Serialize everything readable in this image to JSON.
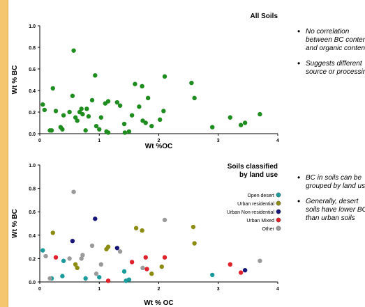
{
  "bullets_top": [
    "No correlation between BC content and organic content",
    "Suggests different source or processing"
  ],
  "bullets_bottom": [
    "BC in soils can be grouped by land use",
    "Generally, desert soils have lower BC than urban soils"
  ],
  "colors": {
    "green": "#1e8c1e",
    "open_desert": "#1a9a9a",
    "urban_residential": "#8c8c14",
    "urban_non_residential": "#16167a",
    "urban_mixed": "#e0202a",
    "other": "#9a9a9a",
    "side_strip": "#f5c66e"
  },
  "chart_data": [
    {
      "type": "scatter",
      "title": "All Soils",
      "xlabel": "Wt %OC",
      "ylabel": "Wt % BC",
      "xlim": [
        0,
        4
      ],
      "ylim": [
        0,
        1.0
      ],
      "xticks": [
        "0",
        "1",
        "2",
        "3",
        "4"
      ],
      "yticks": [
        "0.0",
        "0.2",
        "0.4",
        "0.6",
        "0.8",
        "1.0"
      ],
      "grid": false,
      "series": [
        {
          "color": "#1e8c1e",
          "points": [
            [
              0.05,
              0.27
            ],
            [
              0.08,
              0.22
            ],
            [
              0.17,
              0.03
            ],
            [
              0.2,
              0.03
            ],
            [
              0.22,
              0.42
            ],
            [
              0.27,
              0.21
            ],
            [
              0.35,
              0.06
            ],
            [
              0.38,
              0.04
            ],
            [
              0.4,
              0.17
            ],
            [
              0.5,
              0.2
            ],
            [
              0.55,
              0.35
            ],
            [
              0.57,
              0.77
            ],
            [
              0.6,
              0.15
            ],
            [
              0.63,
              0.12
            ],
            [
              0.67,
              0.2
            ],
            [
              0.7,
              0.23
            ],
            [
              0.72,
              0.18
            ],
            [
              0.77,
              0.03
            ],
            [
              0.79,
              0.23
            ],
            [
              0.82,
              0.16
            ],
            [
              0.88,
              0.31
            ],
            [
              0.93,
              0.54
            ],
            [
              0.95,
              0.07
            ],
            [
              1.0,
              0.04
            ],
            [
              1.03,
              0.15
            ],
            [
              1.1,
              0.28
            ],
            [
              1.12,
              0.02
            ],
            [
              1.15,
              0.01
            ],
            [
              1.15,
              0.3
            ],
            [
              1.3,
              0.29
            ],
            [
              1.35,
              0.26
            ],
            [
              1.42,
              0.09
            ],
            [
              1.43,
              0.01
            ],
            [
              1.5,
              0.02
            ],
            [
              1.55,
              0.17
            ],
            [
              1.6,
              0.46
            ],
            [
              1.67,
              0.25
            ],
            [
              1.72,
              0.44
            ],
            [
              1.73,
              0.12
            ],
            [
              1.78,
              0.1
            ],
            [
              1.82,
              0.33
            ],
            [
              1.88,
              0.07
            ],
            [
              2.02,
              0.13
            ],
            [
              2.08,
              0.21
            ],
            [
              2.1,
              0.53
            ],
            [
              2.55,
              0.47
            ],
            [
              2.6,
              0.33
            ],
            [
              2.9,
              0.06
            ],
            [
              3.2,
              0.15
            ],
            [
              3.38,
              0.08
            ],
            [
              3.45,
              0.1
            ],
            [
              3.7,
              0.18
            ]
          ]
        }
      ]
    },
    {
      "type": "scatter",
      "title": "Soils classified by land use",
      "title_lines": [
        "Soils classified",
        "by land use"
      ],
      "xlabel": "Wt % OC",
      "ylabel": "Wt % BC",
      "xlim": [
        0,
        4
      ],
      "ylim": [
        0,
        1.0
      ],
      "xticks": [
        "0",
        "1",
        "2",
        "3",
        "4"
      ],
      "yticks": [
        "0.0",
        "0.2",
        "0.4",
        "0.6",
        "0.8",
        "1.0"
      ],
      "grid": false,
      "legend_position": "top-right",
      "series": [
        {
          "name": "Open desert",
          "color": "#1a9a9a",
          "points": [
            [
              0.05,
              0.27
            ],
            [
              0.2,
              0.03
            ],
            [
              0.38,
              0.05
            ],
            [
              0.4,
              0.18
            ],
            [
              0.77,
              0.03
            ],
            [
              1.0,
              0.04
            ],
            [
              1.42,
              0.09
            ],
            [
              1.45,
              0.01
            ],
            [
              1.5,
              0.02
            ],
            [
              2.9,
              0.06
            ]
          ]
        },
        {
          "name": "Urban residential",
          "color": "#8c8c14",
          "points": [
            [
              0.22,
              0.42
            ],
            [
              0.6,
              0.15
            ],
            [
              0.63,
              0.12
            ],
            [
              1.12,
              0.28
            ],
            [
              1.15,
              0.3
            ],
            [
              1.62,
              0.46
            ],
            [
              1.72,
              0.44
            ],
            [
              1.88,
              0.07
            ],
            [
              2.05,
              0.13
            ],
            [
              2.58,
              0.47
            ],
            [
              2.6,
              0.33
            ]
          ]
        },
        {
          "name": "Urban Non-residential",
          "color": "#16167a",
          "points": [
            [
              0.55,
              0.35
            ],
            [
              0.93,
              0.54
            ],
            [
              1.3,
              0.29
            ],
            [
              3.45,
              0.1
            ]
          ]
        },
        {
          "name": "Urban Mixed",
          "color": "#e0202a",
          "points": [
            [
              0.27,
              0.21
            ],
            [
              1.15,
              0.01
            ],
            [
              1.55,
              0.17
            ],
            [
              1.78,
              0.21
            ],
            [
              1.8,
              0.11
            ],
            [
              2.1,
              0.21
            ],
            [
              3.2,
              0.15
            ],
            [
              3.38,
              0.08
            ]
          ]
        },
        {
          "name": "Other",
          "color": "#9a9a9a",
          "points": [
            [
              0.1,
              0.22
            ],
            [
              0.17,
              0.03
            ],
            [
              0.5,
              0.2
            ],
            [
              0.57,
              0.77
            ],
            [
              0.7,
              0.2
            ],
            [
              0.72,
              0.23
            ],
            [
              0.88,
              0.31
            ],
            [
              0.95,
              0.07
            ],
            [
              1.03,
              0.15
            ],
            [
              1.35,
              0.26
            ],
            [
              1.73,
              0.12
            ],
            [
              2.1,
              0.53
            ],
            [
              3.7,
              0.18
            ]
          ]
        }
      ]
    }
  ]
}
